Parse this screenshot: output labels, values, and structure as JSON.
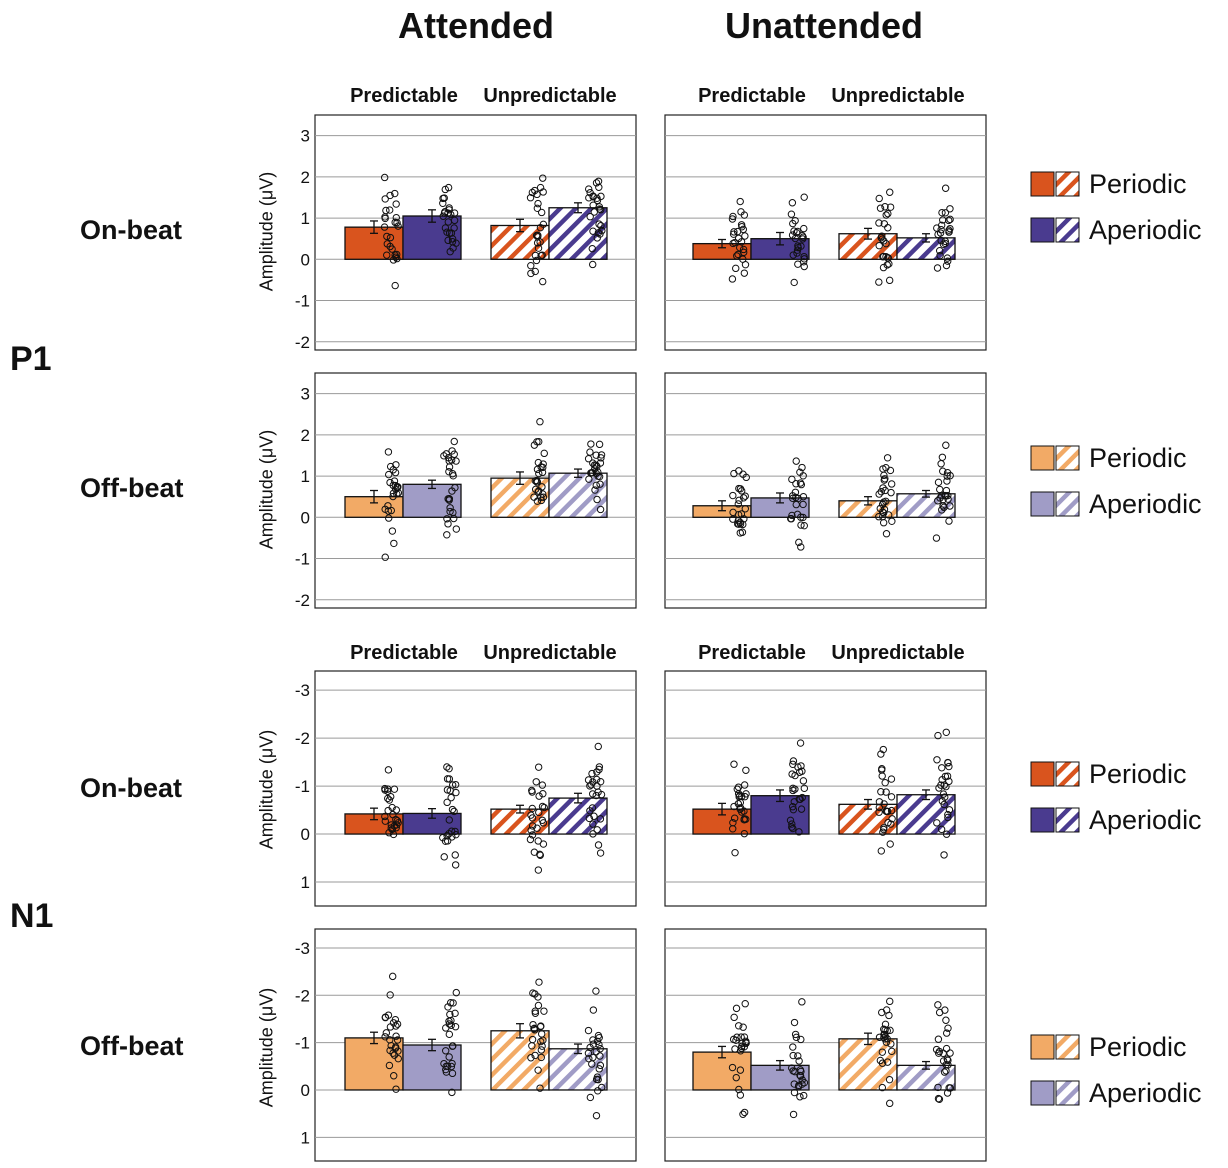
{
  "header": {
    "attended": "Attended",
    "unattended": "Unattended"
  },
  "conditions": {
    "predictable": "Predictable",
    "unpredictable": "Unpredictable"
  },
  "components": {
    "p1": "P1",
    "n1": "N1"
  },
  "rows": {
    "onbeat": "On-beat",
    "offbeat": "Off-beat"
  },
  "axis": {
    "ylabel": "Amplitude (μV)"
  },
  "legend": {
    "periodic": "Periodic",
    "aperiodic": "Aperiodic"
  },
  "colors": {
    "onbeat_periodic": "#d9541e",
    "onbeat_aperiodic": "#4a3b8f",
    "offbeat_periodic": "#f2aa66",
    "offbeat_aperiodic": "#a09cc6"
  },
  "chart_data": [
    {
      "type": "bar",
      "component": "P1",
      "row": "On-beat",
      "panel": "Attended",
      "ylim": [
        -2.2,
        3.5
      ],
      "yticks": [
        -2,
        -1,
        0,
        1,
        2,
        3
      ],
      "inverted": false,
      "categories": [
        "Predictable",
        "Unpredictable"
      ],
      "series": [
        {
          "name": "Periodic",
          "values": [
            0.78,
            0.82
          ],
          "errors": [
            0.15,
            0.15
          ]
        },
        {
          "name": "Aperiodic",
          "values": [
            1.05,
            1.25
          ],
          "errors": [
            0.15,
            0.12
          ]
        }
      ]
    },
    {
      "type": "bar",
      "component": "P1",
      "row": "On-beat",
      "panel": "Unattended",
      "ylim": [
        -2.2,
        3.5
      ],
      "yticks": [
        -2,
        -1,
        0,
        1,
        2,
        3
      ],
      "inverted": false,
      "categories": [
        "Predictable",
        "Unpredictable"
      ],
      "series": [
        {
          "name": "Periodic",
          "values": [
            0.38,
            0.62
          ],
          "errors": [
            0.1,
            0.13
          ]
        },
        {
          "name": "Aperiodic",
          "values": [
            0.5,
            0.52
          ],
          "errors": [
            0.15,
            0.1
          ]
        }
      ]
    },
    {
      "type": "bar",
      "component": "P1",
      "row": "Off-beat",
      "panel": "Attended",
      "ylim": [
        -2.2,
        3.5
      ],
      "yticks": [
        -2,
        -1,
        0,
        1,
        2,
        3
      ],
      "inverted": false,
      "categories": [
        "Predictable",
        "Unpredictable"
      ],
      "series": [
        {
          "name": "Periodic",
          "values": [
            0.5,
            0.95
          ],
          "errors": [
            0.15,
            0.15
          ]
        },
        {
          "name": "Aperiodic",
          "values": [
            0.8,
            1.07
          ],
          "errors": [
            0.1,
            0.1
          ]
        }
      ]
    },
    {
      "type": "bar",
      "component": "P1",
      "row": "Off-beat",
      "panel": "Unattended",
      "ylim": [
        -2.2,
        3.5
      ],
      "yticks": [
        -2,
        -1,
        0,
        1,
        2,
        3
      ],
      "inverted": false,
      "categories": [
        "Predictable",
        "Unpredictable"
      ],
      "series": [
        {
          "name": "Periodic",
          "values": [
            0.28,
            0.4
          ],
          "errors": [
            0.12,
            0.1
          ]
        },
        {
          "name": "Aperiodic",
          "values": [
            0.47,
            0.57
          ],
          "errors": [
            0.12,
            0.08
          ]
        }
      ]
    },
    {
      "type": "bar",
      "component": "N1",
      "row": "On-beat",
      "panel": "Attended",
      "ylim": [
        -3.4,
        1.5
      ],
      "yticks": [
        -3,
        -2,
        -1,
        0,
        1
      ],
      "inverted": true,
      "categories": [
        "Predictable",
        "Unpredictable"
      ],
      "series": [
        {
          "name": "Periodic",
          "values": [
            -0.42,
            -0.52
          ],
          "errors": [
            0.12,
            0.08
          ]
        },
        {
          "name": "Aperiodic",
          "values": [
            -0.43,
            -0.75
          ],
          "errors": [
            0.1,
            0.1
          ]
        }
      ]
    },
    {
      "type": "bar",
      "component": "N1",
      "row": "On-beat",
      "panel": "Unattended",
      "ylim": [
        -3.4,
        1.5
      ],
      "yticks": [
        -3,
        -2,
        -1,
        0,
        1
      ],
      "inverted": true,
      "categories": [
        "Predictable",
        "Unpredictable"
      ],
      "series": [
        {
          "name": "Periodic",
          "values": [
            -0.52,
            -0.62
          ],
          "errors": [
            0.12,
            0.1
          ]
        },
        {
          "name": "Aperiodic",
          "values": [
            -0.8,
            -0.82
          ],
          "errors": [
            0.12,
            0.1
          ]
        }
      ]
    },
    {
      "type": "bar",
      "component": "N1",
      "row": "Off-beat",
      "panel": "Attended",
      "ylim": [
        -3.4,
        1.5
      ],
      "yticks": [
        -3,
        -2,
        -1,
        0,
        1
      ],
      "inverted": true,
      "categories": [
        "Predictable",
        "Unpredictable"
      ],
      "series": [
        {
          "name": "Periodic",
          "values": [
            -1.1,
            -1.25
          ],
          "errors": [
            0.12,
            0.15
          ]
        },
        {
          "name": "Aperiodic",
          "values": [
            -0.95,
            -0.87
          ],
          "errors": [
            0.12,
            0.1
          ]
        }
      ]
    },
    {
      "type": "bar",
      "component": "N1",
      "row": "Off-beat",
      "panel": "Unattended",
      "ylim": [
        -3.4,
        1.5
      ],
      "yticks": [
        -3,
        -2,
        -1,
        0,
        1
      ],
      "inverted": true,
      "categories": [
        "Predictable",
        "Unpredictable"
      ],
      "series": [
        {
          "name": "Periodic",
          "values": [
            -0.8,
            -1.08
          ],
          "errors": [
            0.12,
            0.12
          ]
        },
        {
          "name": "Aperiodic",
          "values": [
            -0.52,
            -0.52
          ],
          "errors": [
            0.1,
            0.08
          ]
        }
      ]
    }
  ]
}
